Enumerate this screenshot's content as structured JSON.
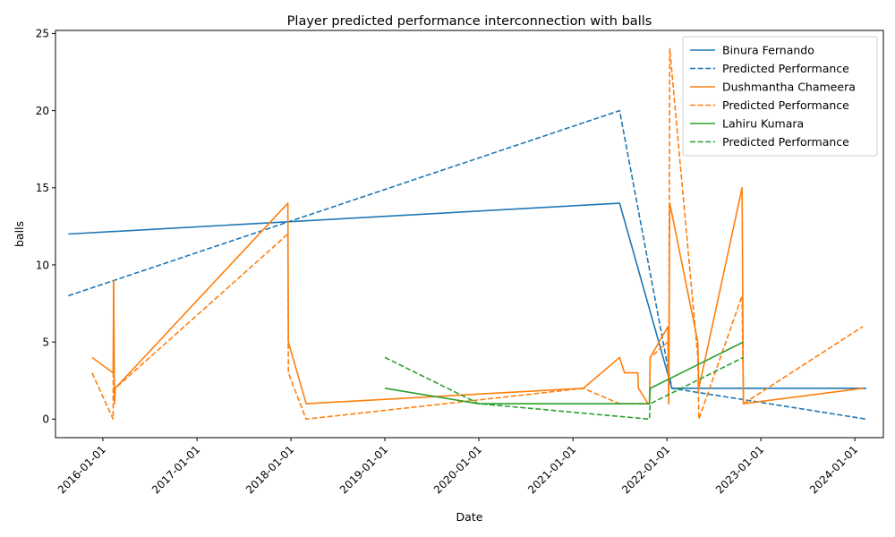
{
  "chart_data": {
    "type": "line",
    "title": "Player predicted performance interconnection with balls",
    "xlabel": "Date",
    "ylabel": "balls",
    "x_axis_type": "date",
    "xlim": [
      "2015-07-01",
      "2024-04-21"
    ],
    "ylim": [
      -1.2,
      25.2
    ],
    "x_ticks": [
      "2016-01-01",
      "2017-01-01",
      "2018-01-01",
      "2019-01-01",
      "2020-01-01",
      "2021-01-01",
      "2022-01-01",
      "2023-01-01",
      "2024-01-01"
    ],
    "y_ticks": [
      0,
      5,
      10,
      15,
      20,
      25
    ],
    "legend_position": "top-right",
    "colors": {
      "blue": "#1f77b4",
      "orange": "#ff7f0e",
      "green": "#2ca02c"
    },
    "series": [
      {
        "name": "Binura Fernando",
        "player": "Binura Fernando",
        "kind": "actual",
        "style": "solid",
        "color": "#1f77b4",
        "points": [
          [
            "2015-08-20",
            12
          ],
          [
            "2021-07-01",
            14
          ],
          [
            "2022-01-20",
            2
          ],
          [
            "2024-02-15",
            2
          ]
        ]
      },
      {
        "name": "Predicted Performance",
        "player": "Binura Fernando",
        "kind": "predicted",
        "style": "dashed",
        "color": "#1f77b4",
        "points": [
          [
            "2015-08-20",
            8
          ],
          [
            "2021-07-01",
            20
          ],
          [
            "2022-01-20",
            2
          ],
          [
            "2024-02-15",
            0
          ]
        ]
      },
      {
        "name": "Dushmantha Chameera",
        "player": "Dushmantha Chameera",
        "kind": "actual",
        "style": "solid",
        "color": "#ff7f0e",
        "points": [
          [
            "2015-11-20",
            4
          ],
          [
            "2016-02-10",
            3
          ],
          [
            "2016-02-12",
            9
          ],
          [
            "2016-02-15",
            1
          ],
          [
            "2016-02-18",
            2
          ],
          [
            "2017-12-20",
            14
          ],
          [
            "2017-12-22",
            5
          ],
          [
            "2018-03-01",
            1
          ],
          [
            "2021-02-10",
            2
          ],
          [
            "2021-07-01",
            4
          ],
          [
            "2021-07-20",
            3
          ],
          [
            "2021-09-10",
            3
          ],
          [
            "2021-09-12",
            2
          ],
          [
            "2021-10-20",
            1
          ],
          [
            "2021-10-25",
            1
          ],
          [
            "2021-10-28",
            4
          ],
          [
            "2022-01-05",
            6
          ],
          [
            "2022-01-08",
            1
          ],
          [
            "2022-01-12",
            14
          ],
          [
            "2022-05-01",
            5
          ],
          [
            "2022-05-05",
            2
          ],
          [
            "2022-10-20",
            15
          ],
          [
            "2022-10-25",
            1
          ],
          [
            "2024-02-01",
            2
          ]
        ]
      },
      {
        "name": "Predicted Performance",
        "player": "Dushmantha Chameera",
        "kind": "predicted",
        "style": "dashed",
        "color": "#ff7f0e",
        "points": [
          [
            "2015-11-20",
            3
          ],
          [
            "2016-02-10",
            0
          ],
          [
            "2016-02-12",
            9
          ],
          [
            "2016-02-15",
            1
          ],
          [
            "2016-02-18",
            2
          ],
          [
            "2017-12-20",
            12
          ],
          [
            "2017-12-22",
            3
          ],
          [
            "2018-03-01",
            0
          ],
          [
            "2021-02-10",
            2
          ],
          [
            "2021-07-01",
            1
          ],
          [
            "2021-07-20",
            1
          ],
          [
            "2021-09-10",
            1
          ],
          [
            "2021-09-12",
            1
          ],
          [
            "2021-10-20",
            1
          ],
          [
            "2021-10-25",
            1
          ],
          [
            "2021-10-28",
            4
          ],
          [
            "2022-01-05",
            5
          ],
          [
            "2022-01-08",
            1
          ],
          [
            "2022-01-12",
            24
          ],
          [
            "2022-05-01",
            4
          ],
          [
            "2022-05-05",
            0
          ],
          [
            "2022-10-20",
            8
          ],
          [
            "2022-10-25",
            1
          ],
          [
            "2024-02-01",
            6
          ]
        ]
      },
      {
        "name": "Lahiru Kumara",
        "player": "Lahiru Kumara",
        "kind": "actual",
        "style": "solid",
        "color": "#2ca02c",
        "points": [
          [
            "2019-01-01",
            2
          ],
          [
            "2020-01-01",
            1
          ],
          [
            "2021-10-25",
            1
          ],
          [
            "2021-10-28",
            2
          ],
          [
            "2022-10-25",
            5
          ]
        ]
      },
      {
        "name": "Predicted Performance",
        "player": "Lahiru Kumara",
        "kind": "predicted",
        "style": "dashed",
        "color": "#2ca02c",
        "points": [
          [
            "2019-01-01",
            4
          ],
          [
            "2020-01-01",
            1
          ],
          [
            "2021-10-25",
            0
          ],
          [
            "2021-10-28",
            1
          ],
          [
            "2022-10-25",
            4
          ]
        ]
      }
    ]
  }
}
